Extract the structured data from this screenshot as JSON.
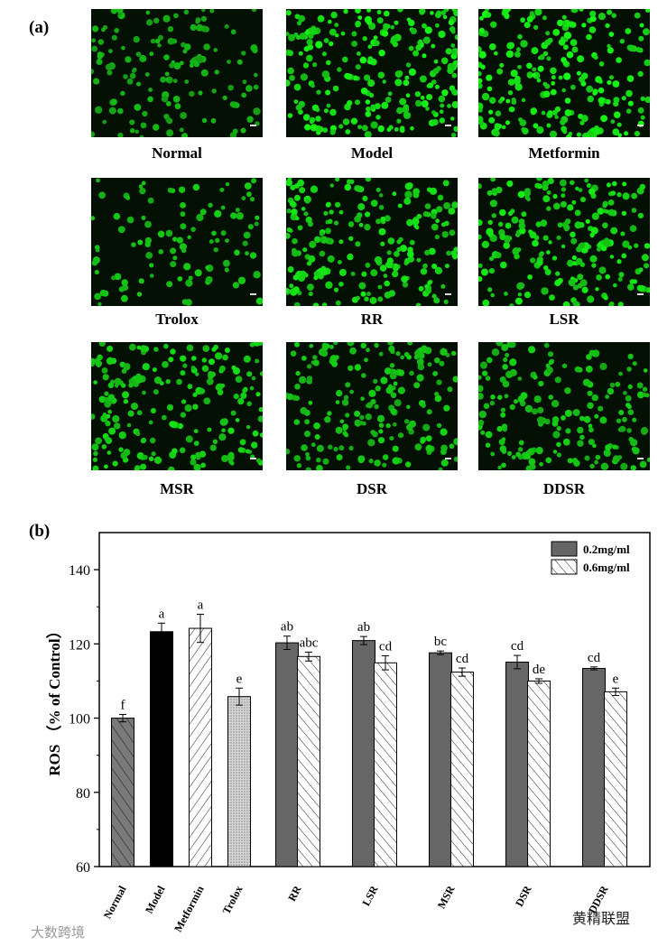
{
  "panel_a_label": "(a)",
  "panel_b_label": "(b)",
  "micrographs": [
    {
      "label": "Normal",
      "density": 0.55,
      "brightness": 0.55
    },
    {
      "label": "Model",
      "density": 0.95,
      "brightness": 0.95
    },
    {
      "label": "Metformin",
      "density": 0.9,
      "brightness": 1.0
    },
    {
      "label": "Trolox",
      "density": 0.4,
      "brightness": 0.7
    },
    {
      "label": "RR",
      "density": 0.85,
      "brightness": 0.85
    },
    {
      "label": "LSR",
      "density": 0.85,
      "brightness": 0.9
    },
    {
      "label": "MSR",
      "density": 0.8,
      "brightness": 0.8
    },
    {
      "label": "DSR",
      "density": 0.75,
      "brightness": 0.7
    },
    {
      "label": "DDSR",
      "density": 0.7,
      "brightness": 0.7
    }
  ],
  "chart_data": {
    "type": "bar",
    "ylabel": "ROS （% of Control）",
    "ylim": [
      60,
      150
    ],
    "yticks": [
      60,
      80,
      100,
      120,
      140
    ],
    "legend_position": "top-right",
    "single_groups": [
      {
        "category": "Normal",
        "value": 100.0,
        "error": 1.0,
        "letter": "f",
        "pattern": "hatch-diag-dark"
      },
      {
        "category": "Model",
        "value": 123.3,
        "error": 2.3,
        "letter": "a",
        "pattern": "solid-black"
      },
      {
        "category": "Metformin",
        "value": 124.2,
        "error": 3.8,
        "letter": "a",
        "pattern": "hatch-diag-white"
      },
      {
        "category": "Trolox",
        "value": 105.8,
        "error": 2.3,
        "letter": "e",
        "pattern": "dotted-gray"
      }
    ],
    "pair_categories": [
      "RR",
      "LSR",
      "MSR",
      "DSR",
      "DDSR"
    ],
    "series": [
      {
        "name": "0.2mg/ml",
        "color": "#666666",
        "values": [
          120.3,
          120.9,
          117.6,
          115.1,
          113.4
        ],
        "errors": [
          1.8,
          1.1,
          0.5,
          1.8,
          0.4
        ],
        "letters": [
          "ab",
          "ab",
          "bc",
          "cd",
          "cd"
        ]
      },
      {
        "name": "0.6mg/ml",
        "color": "#ffffff",
        "values": [
          116.6,
          114.9,
          112.4,
          110.0,
          107.1
        ],
        "errors": [
          1.2,
          1.9,
          1.1,
          0.6,
          1.0
        ],
        "letters": [
          "abc",
          "cd",
          "cd",
          "de",
          "e"
        ]
      }
    ]
  },
  "watermarks": {
    "left": "大数跨境",
    "right": "黄精联盟"
  }
}
